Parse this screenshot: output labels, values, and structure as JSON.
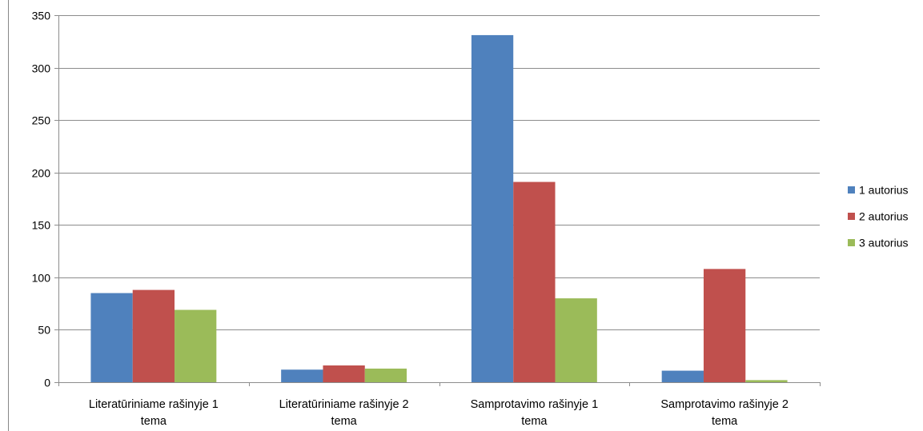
{
  "chart_data": {
    "type": "bar",
    "categories": [
      [
        "Literatūriniame rašinyje 1",
        "tema"
      ],
      [
        "Literatūriniame rašinyje 2",
        "tema"
      ],
      [
        "Samprotavimo rašinyje 1",
        "tema"
      ],
      [
        "Samprotavimo rašinyje 2",
        "tema"
      ]
    ],
    "series": [
      {
        "name": "1 autorius",
        "color": "#4F81BD",
        "values": [
          85,
          12,
          331,
          11
        ]
      },
      {
        "name": "2 autorius",
        "color": "#C0504D",
        "values": [
          88,
          16,
          191,
          108
        ]
      },
      {
        "name": "3 autorius",
        "color": "#9BBB59",
        "values": [
          69,
          13,
          80,
          2
        ]
      }
    ],
    "ylim": [
      0,
      350
    ],
    "yticks": [
      0,
      50,
      100,
      150,
      200,
      250,
      300,
      350
    ],
    "grid": true,
    "legend_position": "right",
    "title": "",
    "xlabel": "",
    "ylabel": ""
  }
}
